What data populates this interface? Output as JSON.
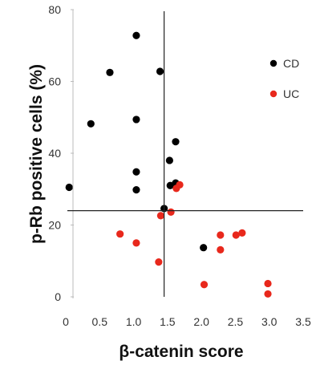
{
  "chart_data": {
    "type": "scatter",
    "xlabel": "β-catenin score",
    "ylabel": "p-Rb positive cells (%)",
    "xlim": [
      0,
      3.5
    ],
    "ylim": [
      0,
      80
    ],
    "xticks": [
      "0",
      "0.5",
      "1.0",
      "1.5",
      "2.0",
      "2.5",
      "3.0",
      "3.5"
    ],
    "yticks": [
      "0",
      "20",
      "40",
      "60",
      "80"
    ],
    "reference_lines": {
      "x": 1.45,
      "y": 24
    },
    "legend_position": "top-right",
    "series": [
      {
        "name": "CD",
        "color": "#000000",
        "points": [
          [
            0.05,
            30.5
          ],
          [
            0.37,
            48.2
          ],
          [
            0.65,
            62.5
          ],
          [
            1.04,
            72.8
          ],
          [
            1.04,
            49.4
          ],
          [
            1.04,
            34.8
          ],
          [
            1.04,
            29.8
          ],
          [
            1.39,
            62.8
          ],
          [
            1.45,
            24.6
          ],
          [
            1.53,
            38.0
          ],
          [
            1.54,
            31.0
          ],
          [
            1.62,
            43.2
          ],
          [
            1.62,
            31.7
          ],
          [
            2.03,
            13.7
          ]
        ]
      },
      {
        "name": "UC",
        "color": "#e8281c",
        "points": [
          [
            0.8,
            17.5
          ],
          [
            1.04,
            15.0
          ],
          [
            1.37,
            9.7
          ],
          [
            1.4,
            22.6
          ],
          [
            1.55,
            23.6
          ],
          [
            1.63,
            30.2
          ],
          [
            1.68,
            31.2
          ],
          [
            2.04,
            3.4
          ],
          [
            2.28,
            17.2
          ],
          [
            2.28,
            13.1
          ],
          [
            2.51,
            17.2
          ],
          [
            2.6,
            17.8
          ],
          [
            2.98,
            3.7
          ],
          [
            2.98,
            0.8
          ]
        ]
      }
    ]
  }
}
